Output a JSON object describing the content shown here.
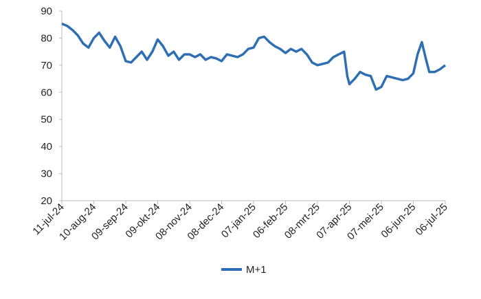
{
  "chart_data": {
    "type": "line",
    "x": [
      "2024-07-11",
      "2024-07-16",
      "2024-07-21",
      "2024-07-26",
      "2024-07-31",
      "2024-08-05",
      "2024-08-10",
      "2024-08-15",
      "2024-08-20",
      "2024-08-25",
      "2024-08-30",
      "2024-09-04",
      "2024-09-09",
      "2024-09-14",
      "2024-09-19",
      "2024-09-24",
      "2024-09-29",
      "2024-10-04",
      "2024-10-09",
      "2024-10-14",
      "2024-10-19",
      "2024-10-24",
      "2024-10-29",
      "2024-11-03",
      "2024-11-08",
      "2024-11-13",
      "2024-11-18",
      "2024-11-23",
      "2024-11-28",
      "2024-12-03",
      "2024-12-08",
      "2024-12-13",
      "2024-12-18",
      "2024-12-23",
      "2024-12-28",
      "2025-01-02",
      "2025-01-07",
      "2025-01-12",
      "2025-01-17",
      "2025-01-22",
      "2025-01-27",
      "2025-02-01",
      "2025-02-06",
      "2025-02-11",
      "2025-02-16",
      "2025-02-21",
      "2025-02-26",
      "2025-03-03",
      "2025-03-08",
      "2025-03-13",
      "2025-03-18",
      "2025-03-23",
      "2025-03-28",
      "2025-04-02",
      "2025-04-05",
      "2025-04-07",
      "2025-04-12",
      "2025-04-17",
      "2025-04-22",
      "2025-04-27",
      "2025-05-02",
      "2025-05-07",
      "2025-05-12",
      "2025-05-17",
      "2025-05-22",
      "2025-05-27",
      "2025-06-01",
      "2025-06-06",
      "2025-06-10",
      "2025-06-14",
      "2025-06-18",
      "2025-06-21",
      "2025-06-26",
      "2025-07-01",
      "2025-07-06"
    ],
    "series": [
      {
        "name": "M+1",
        "color": "#2e6fb4",
        "values": [
          85.3,
          84.5,
          83,
          81,
          78,
          76.5,
          80,
          82,
          79,
          76.5,
          80.5,
          77,
          71.5,
          71,
          73,
          75,
          72,
          75,
          79.5,
          77,
          73.5,
          75,
          72,
          74,
          74,
          73,
          74,
          72,
          73,
          72.5,
          71.5,
          74,
          73.5,
          73,
          74,
          76,
          76.5,
          80,
          80.5,
          78.5,
          77,
          76,
          74.5,
          76,
          75,
          76,
          74,
          71,
          70,
          70.5,
          71,
          73,
          74,
          75,
          66,
          63,
          65,
          67.5,
          66.5,
          66,
          61,
          62,
          66,
          65.5,
          65,
          64.5,
          65,
          67,
          74,
          78.5,
          72,
          67.5,
          67.5,
          68.5,
          70
        ]
      }
    ],
    "xlim": [
      "2024-07-11",
      "2025-07-06"
    ],
    "xticks": [
      {
        "value": "2024-07-11",
        "label": "11-jul-24"
      },
      {
        "value": "2024-08-10",
        "label": "10-aug-24"
      },
      {
        "value": "2024-09-09",
        "label": "09-sep-24"
      },
      {
        "value": "2024-10-09",
        "label": "09-okt-24"
      },
      {
        "value": "2024-11-08",
        "label": "08-nov-24"
      },
      {
        "value": "2024-12-08",
        "label": "08-dec-24"
      },
      {
        "value": "2025-01-07",
        "label": "07-jan-25"
      },
      {
        "value": "2025-02-06",
        "label": "06-feb-25"
      },
      {
        "value": "2025-03-08",
        "label": "08-mrt-25"
      },
      {
        "value": "2025-04-07",
        "label": "07-apr-25"
      },
      {
        "value": "2025-05-07",
        "label": "07-mei-25"
      },
      {
        "value": "2025-06-06",
        "label": "06-jun-25"
      },
      {
        "value": "2025-07-06",
        "label": "06-jul-25"
      }
    ],
    "ylim": [
      20,
      90
    ],
    "yticks": [
      20,
      30,
      40,
      50,
      60,
      70,
      80,
      90
    ],
    "grid": false,
    "legend": "bottom"
  }
}
